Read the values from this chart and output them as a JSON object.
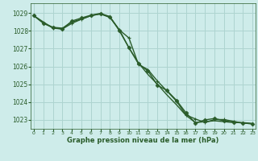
{
  "title": "Graphe pression niveau de la mer (hPa)",
  "background_color": "#ceecea",
  "grid_color": "#aed4d0",
  "line_color": "#2a5c2a",
  "xlim": [
    -0.3,
    23.3
  ],
  "ylim": [
    1022.5,
    1029.55
  ],
  "yticks": [
    1023,
    1024,
    1025,
    1026,
    1027,
    1028,
    1029
  ],
  "xticks": [
    0,
    1,
    2,
    3,
    4,
    5,
    6,
    7,
    8,
    9,
    10,
    11,
    12,
    13,
    14,
    15,
    16,
    17,
    18,
    19,
    20,
    21,
    22,
    23
  ],
  "series": [
    {
      "x": [
        0,
        1,
        2,
        3,
        4,
        5,
        6,
        7,
        8,
        9,
        10,
        11,
        12,
        13,
        14,
        15,
        16,
        17,
        18,
        19,
        20,
        21,
        22,
        23
      ],
      "y": [
        1028.85,
        1028.45,
        1028.2,
        1028.15,
        1028.5,
        1028.65,
        1028.85,
        1028.95,
        1028.75,
        1028.05,
        1027.05,
        1026.2,
        1025.55,
        1025.0,
        1024.4,
        1023.85,
        1023.25,
        1022.85,
        1022.9,
        1022.95,
        1022.9,
        1022.85,
        1022.85,
        1022.8
      ],
      "marker": null,
      "lw": 1.0
    },
    {
      "x": [
        0,
        1,
        2,
        3,
        4,
        5,
        6,
        7,
        8,
        9,
        10,
        11,
        12,
        13,
        14,
        15,
        16,
        17,
        18,
        19,
        20,
        21,
        22,
        23
      ],
      "y": [
        1028.85,
        1028.42,
        1028.18,
        1028.1,
        1028.55,
        1028.72,
        1028.88,
        1028.98,
        1028.8,
        1028.0,
        1027.05,
        1026.15,
        1025.75,
        1024.95,
        1024.65,
        1024.1,
        1023.4,
        1022.82,
        1023.0,
        1023.08,
        1022.95,
        1022.88,
        1022.82,
        1022.78
      ],
      "marker": "D",
      "lw": 1.0
    },
    {
      "x": [
        0,
        2,
        3,
        4,
        5,
        6,
        7,
        8,
        9,
        10,
        11,
        12,
        13,
        14,
        15,
        16,
        17,
        18,
        19,
        20,
        21,
        22,
        23
      ],
      "y": [
        1028.85,
        1028.15,
        1028.1,
        1028.42,
        1028.65,
        1028.85,
        1028.95,
        1028.78,
        1028.05,
        1027.6,
        1026.12,
        1025.82,
        1025.18,
        1024.62,
        1024.05,
        1023.28,
        1023.05,
        1022.85,
        1023.02,
        1023.02,
        1022.92,
        1022.82,
        1022.78
      ],
      "marker": "+",
      "lw": 1.0
    }
  ]
}
